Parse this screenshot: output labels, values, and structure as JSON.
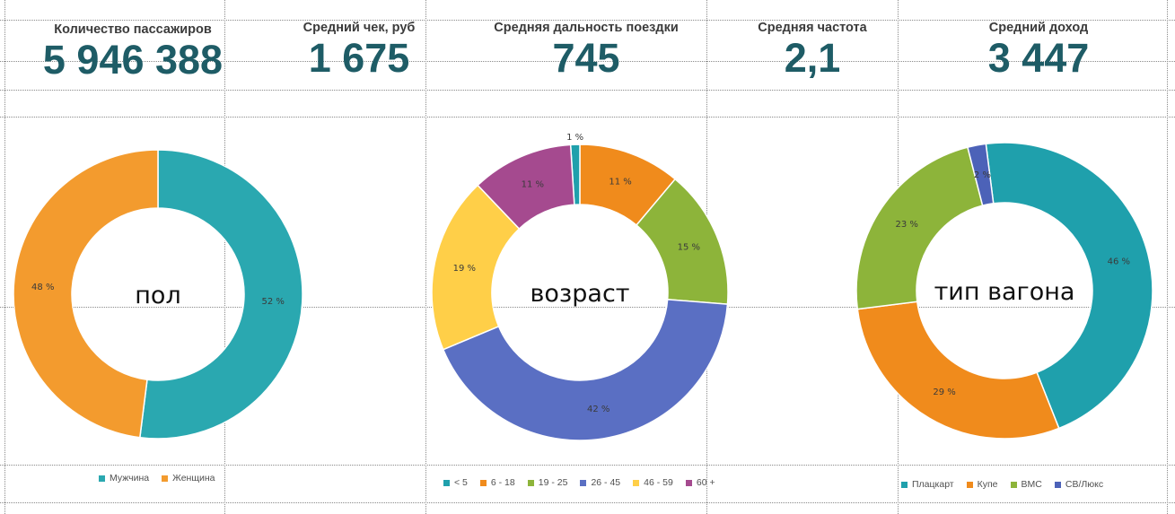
{
  "kpis": [
    {
      "label": "Количество пассажиров",
      "value": "5 946 388"
    },
    {
      "label": "Средний чек, руб",
      "value": "1 675"
    },
    {
      "label": "Средняя дальность поездки",
      "value": "745"
    },
    {
      "label": "Средняя частота",
      "value": "2,1"
    },
    {
      "label": "Средний доход",
      "value": "3 447"
    }
  ],
  "chart_data": [
    {
      "type": "pie",
      "center_label": "пол",
      "categories": [
        "Мужчина",
        "Женщина"
      ],
      "values": [
        52,
        48
      ],
      "value_labels": [
        "52 %",
        "48 %"
      ],
      "colors": [
        "#2aa8b0",
        "#f39b2e"
      ],
      "legend": "bottom"
    },
    {
      "type": "pie",
      "center_label": "возраст",
      "categories": [
        "< 5",
        "6 - 18",
        "19 - 25",
        "26 - 45",
        "46 - 59",
        "60 +"
      ],
      "values": [
        1,
        11,
        15,
        42,
        19,
        11
      ],
      "value_labels": [
        "1 %",
        "11 %",
        "15 %",
        "42 %",
        "19 %",
        "11 %"
      ],
      "colors": [
        "#1fa0ac",
        "#f08b1c",
        "#8db43a",
        "#5a6fc3",
        "#ffcf48",
        "#a54a8f"
      ],
      "legend": "bottom"
    },
    {
      "type": "pie",
      "center_label": "тип вагона",
      "categories": [
        "Плацкарт",
        "Купе",
        "ВМС",
        "СВ/Люкс"
      ],
      "values": [
        46,
        29,
        23,
        2
      ],
      "value_labels": [
        "46 %",
        "29 %",
        "23 %",
        "2 %"
      ],
      "colors": [
        "#1fa0ac",
        "#f08b1c",
        "#8db43a",
        "#4c62b8"
      ],
      "legend": "bottom"
    }
  ]
}
